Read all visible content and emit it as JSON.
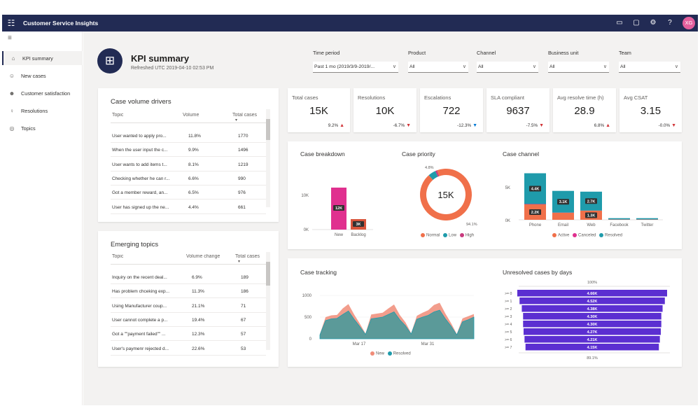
{
  "app": {
    "title": "Customer Service Insights",
    "avatar": "XG"
  },
  "nav": [
    {
      "label": "KPI summary",
      "icon": "home-icon",
      "active": true
    },
    {
      "label": "New cases",
      "icon": "person-icon"
    },
    {
      "label": "Customer satisfaction",
      "icon": "smile-icon"
    },
    {
      "label": "Resolutions",
      "icon": "person-check-icon"
    },
    {
      "label": "Topics",
      "icon": "topics-icon"
    }
  ],
  "header": {
    "title": "KPI summary",
    "subtitle": "Refreshed UTC 2019-04-10 02:53 PM"
  },
  "filters": [
    {
      "label": "Time period",
      "value": "Past 1 mo (2019/3/9-2019/..."
    },
    {
      "label": "Product",
      "value": "All"
    },
    {
      "label": "Channel",
      "value": "All"
    },
    {
      "label": "Business unit",
      "value": "All"
    },
    {
      "label": "Team",
      "value": "All"
    }
  ],
  "volume_drivers": {
    "title": "Case volume drivers",
    "columns": [
      "Topic",
      "Volume",
      "Total cases"
    ],
    "rows": [
      [
        "User wanted to apply pro...",
        "11.8%",
        "1770"
      ],
      [
        "When the user input the c...",
        "9.9%",
        "1496"
      ],
      [
        "User wants to add items t...",
        "8.1%",
        "1219"
      ],
      [
        "Checking whether he can r...",
        "6.6%",
        "990"
      ],
      [
        "Got a member reward, an...",
        "6.5%",
        "976"
      ],
      [
        "User has signed up the ne...",
        "4.4%",
        "661"
      ]
    ]
  },
  "emerging": {
    "title": "Emerging topics",
    "columns": [
      "Topic",
      "Volume change",
      "Total cases"
    ],
    "rows": [
      [
        "Inquiry on the recent deal...",
        "6.9%",
        "189"
      ],
      [
        "Has problem chceking exp...",
        "11.3%",
        "186"
      ],
      [
        "Using Manufacturer coup...",
        "21.1%",
        "71"
      ],
      [
        "User cannot complete a p...",
        "19.4%",
        "67"
      ],
      [
        "Got a \"\"payment failed\"\" ...",
        "12.3%",
        "57"
      ],
      [
        "User's paymenr rejected d...",
        "22.6%",
        "53"
      ]
    ]
  },
  "kpis": [
    {
      "title": "Total cases",
      "value": "15K",
      "delta": "9.2%",
      "dir": "up"
    },
    {
      "title": "Resolutions",
      "value": "10K",
      "delta": "-6.7%",
      "dir": "down"
    },
    {
      "title": "Escalations",
      "value": "722",
      "delta": "-12.3%",
      "dir": "downblue"
    },
    {
      "title": "SLA compliant",
      "value": "9637",
      "delta": "-7.5%",
      "dir": "down"
    },
    {
      "title": "Avg resolve time (h)",
      "value": "28.9",
      "delta": "6.8%",
      "dir": "up"
    },
    {
      "title": "Avg CSAT",
      "value": "3.15",
      "delta": "-0.0%",
      "dir": "down"
    }
  ],
  "breakdown": {
    "title": "Case breakdown",
    "ticks": [
      "10K",
      "0K"
    ]
  },
  "priority": {
    "title": "Case priority"
  },
  "channel": {
    "title": "Case channel",
    "ticks": [
      "5K",
      "0K"
    ]
  },
  "tracking": {
    "title": "Case tracking",
    "ticks": [
      "1000",
      "500",
      "0"
    ],
    "xticks": [
      "Mar 17",
      "Mar 31"
    ]
  },
  "unresolved": {
    "title": "Unresolved cases by days",
    "top": "100%",
    "bottom": "89.1%"
  },
  "colors": {
    "new": "#e0308f",
    "backlog": "#d9553b",
    "normal": "#f0704a",
    "low": "#1f9bab",
    "high": "#c83a7e",
    "active": "#f0704a",
    "canceled": "#e0308f",
    "resolved": "#1f9bab",
    "funnel": "#5b2fd1",
    "track_new": "#f08c78",
    "track_resolved": "#4a9a9a"
  },
  "chart_data": [
    {
      "type": "bar",
      "title": "Case breakdown",
      "categories": [
        "New",
        "Backlog"
      ],
      "values": [
        12000,
        3000
      ],
      "labels": [
        "12K",
        "3K"
      ],
      "ylim": [
        0,
        15000
      ]
    },
    {
      "type": "pie",
      "title": "Case priority",
      "center_label": "15K",
      "slices": [
        {
          "name": "Normal",
          "value": 94.1,
          "label": "94.1%"
        },
        {
          "name": "Low",
          "value": 4.8,
          "label": "4.8%"
        },
        {
          "name": "High",
          "value": 1.1
        }
      ]
    },
    {
      "type": "bar",
      "title": "Case channel",
      "stacked": true,
      "categories": [
        "Phone",
        "Email",
        "Web",
        "Facebook",
        "Twitter"
      ],
      "ylim": [
        0,
        7500
      ],
      "series": [
        {
          "name": "Active",
          "values": [
            2200,
            1000,
            1300,
            40,
            40
          ]
        },
        {
          "name": "Canceled",
          "values": [
            50,
            30,
            20,
            10,
            10
          ]
        },
        {
          "name": "Resolved",
          "values": [
            4400,
            3100,
            2700,
            180,
            180
          ]
        }
      ],
      "labels": {
        "Active": [
          "2.2K",
          "",
          "1.3K",
          "",
          ""
        ],
        "Resolved": [
          "4.4K",
          "3.1K",
          "2.7K",
          "",
          ""
        ]
      }
    },
    {
      "type": "area",
      "title": "Case tracking",
      "ylim": [
        0,
        1100
      ],
      "series": [
        {
          "name": "New",
          "values": [
            110,
            500,
            540,
            550,
            700,
            800,
            560,
            350,
            120,
            560,
            580,
            600,
            700,
            790,
            550,
            380,
            130,
            530,
            600,
            660,
            780,
            830,
            580,
            360,
            110,
            470,
            520,
            570
          ]
        },
        {
          "name": "Resolved",
          "values": [
            90,
            420,
            460,
            470,
            560,
            640,
            450,
            280,
            100,
            460,
            480,
            500,
            560,
            620,
            440,
            300,
            110,
            450,
            500,
            540,
            620,
            660,
            460,
            290,
            90,
            390,
            440,
            500
          ]
        }
      ]
    },
    {
      "type": "bar",
      "title": "Unresolved cases by days",
      "orientation": "horizontal",
      "categories": [
        ">= 0",
        ">= 1",
        ">= 2",
        ">= 3",
        ">= 4",
        ">= 5",
        ">= 6",
        ">= 7"
      ],
      "values": [
        4660,
        4520,
        4380,
        4300,
        4300,
        4270,
        4210,
        4150
      ],
      "labels": [
        "4.66K",
        "4.52K",
        "4.38K",
        "4.30K",
        "4.30K",
        "4.27K",
        "4.21K",
        "4.15K"
      ]
    }
  ]
}
